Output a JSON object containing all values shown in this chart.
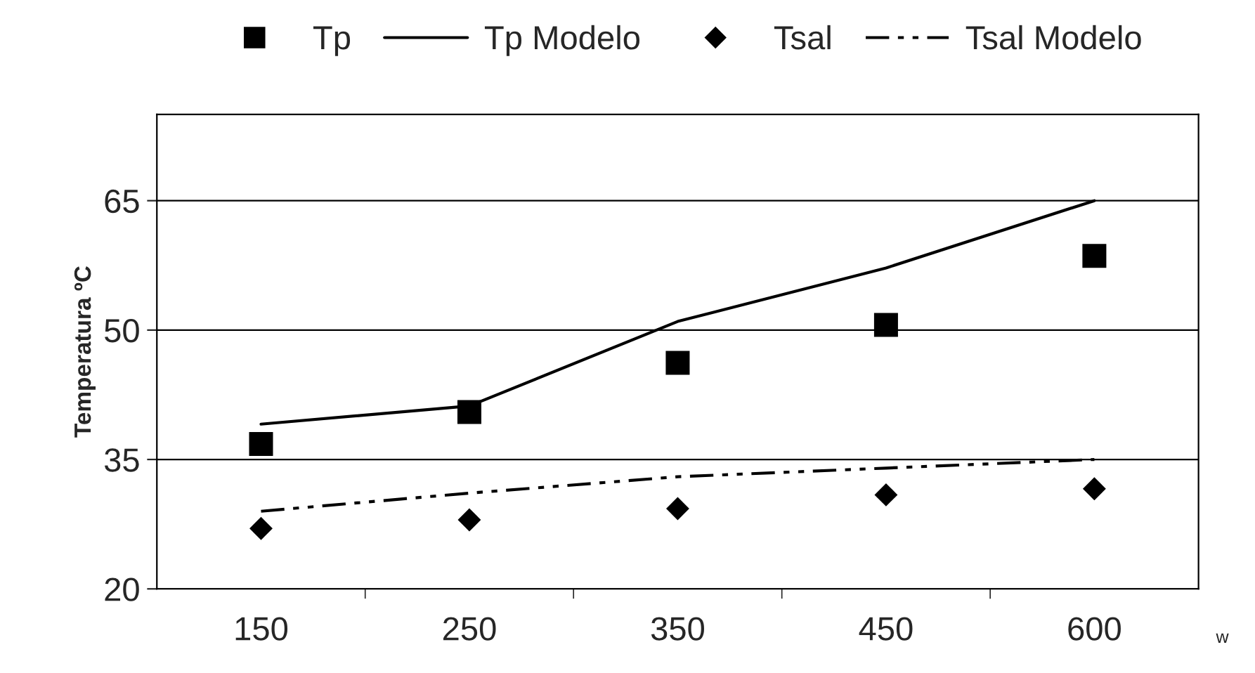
{
  "chart_data": {
    "type": "line",
    "ylabel": "Temperatura ºC",
    "xlabel": "w",
    "categories": [
      "150",
      "250",
      "350",
      "450",
      "600"
    ],
    "series": [
      {
        "name": "Tp",
        "type": "scatter",
        "marker": "square",
        "color": "#000000",
        "values": [
          36.8,
          40.5,
          46.2,
          50.6,
          58.6
        ]
      },
      {
        "name": "Tp Modelo",
        "marker": "none",
        "line_style": "solid",
        "color": "#000000",
        "values": [
          39.1,
          41.2,
          51,
          57.2,
          65
        ]
      },
      {
        "name": "Tsal",
        "type": "scatter",
        "marker": "diamond",
        "color": "#000000",
        "values": [
          27,
          28,
          29.3,
          30.9,
          31.6
        ]
      },
      {
        "name": "Tsal Modelo",
        "marker": "none",
        "line_style": "dashed",
        "color": "#000000",
        "values": [
          29,
          31.1,
          33,
          34,
          35
        ]
      }
    ],
    "ylim": [
      20,
      75
    ],
    "yticks": [
      20,
      35,
      50,
      65
    ],
    "grid": "y",
    "legend": "top"
  }
}
